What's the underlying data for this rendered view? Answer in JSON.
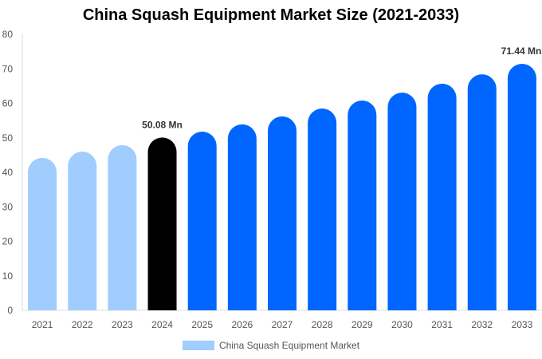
{
  "chart_data": {
    "type": "bar",
    "title": "China Squash Equipment Market Size (2021-2033)",
    "categories": [
      "2021",
      "2022",
      "2023",
      "2024",
      "2025",
      "2026",
      "2027",
      "2028",
      "2029",
      "2030",
      "2031",
      "2032",
      "2033"
    ],
    "series": [
      {
        "name": "China Squash Equipment Market",
        "values": [
          44.2,
          46.0,
          47.9,
          50.08,
          51.8,
          53.9,
          56.2,
          58.5,
          60.8,
          63.1,
          65.7,
          68.4,
          71.44
        ]
      }
    ],
    "data_labels": [
      {
        "category": "2024",
        "text": "50.08 Mn"
      },
      {
        "category": "2033",
        "text": "71.44 Mn"
      }
    ],
    "ylim": [
      0,
      80
    ],
    "yticks": [
      0,
      10,
      20,
      30,
      40,
      50,
      60,
      70,
      80
    ],
    "grid": false,
    "legend": "bottom",
    "colors": {
      "historical": "#a0cdfd",
      "current": "#000000",
      "forecast": "#0066ff"
    },
    "xlabel": "",
    "ylabel": ""
  }
}
